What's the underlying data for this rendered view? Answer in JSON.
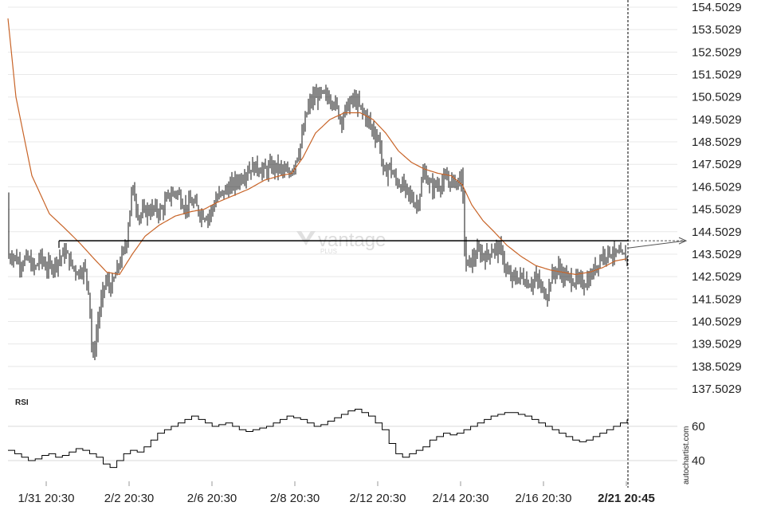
{
  "chart_data": [
    {
      "type": "candlestick",
      "price_axis": {
        "ticks": [
          "154.5029",
          "153.5029",
          "152.5029",
          "151.5029",
          "150.5029",
          "149.5029",
          "148.5029",
          "147.5029",
          "146.5029",
          "145.5029",
          "144.5029",
          "143.5029",
          "142.5029",
          "141.5029",
          "140.5029",
          "139.5029",
          "138.5029",
          "137.5029"
        ],
        "ylim": [
          137.0,
          154.75
        ]
      },
      "time_axis": {
        "ticks": [
          "1/31 20:30",
          "2/2 20:30",
          "2/6 20:30",
          "2/8 20:30",
          "2/12 20:30",
          "2/14 20:30",
          "2/16 20:30",
          "2/21 20:45"
        ],
        "highlight": "2/21 20:45"
      },
      "key_level": {
        "value": 144.1,
        "extends_right": true
      },
      "ohlc_anchors": [
        [
          0,
          146.0
        ],
        [
          6,
          143.2
        ],
        [
          16,
          143.5
        ],
        [
          24,
          143.1
        ],
        [
          34,
          143.3
        ],
        [
          44,
          142.8
        ],
        [
          50,
          143.4
        ],
        [
          58,
          142.9
        ],
        [
          66,
          143.0
        ],
        [
          74,
          143.3
        ],
        [
          82,
          143.6
        ],
        [
          90,
          143.0
        ],
        [
          98,
          142.7
        ],
        [
          106,
          142.9
        ],
        [
          112,
          141.8
        ],
        [
          116,
          138.6
        ],
        [
          124,
          140.8
        ],
        [
          132,
          142.3
        ],
        [
          140,
          142.0
        ],
        [
          148,
          142.9
        ],
        [
          158,
          143.9
        ],
        [
          166,
          146.5
        ],
        [
          174,
          145.2
        ],
        [
          182,
          145.4
        ],
        [
          192,
          145.5
        ],
        [
          202,
          145.4
        ],
        [
          212,
          146.1
        ],
        [
          222,
          146.3
        ],
        [
          232,
          145.6
        ],
        [
          242,
          145.8
        ],
        [
          252,
          145.3
        ],
        [
          262,
          145.2
        ],
        [
          272,
          146.0
        ],
        [
          282,
          146.3
        ],
        [
          292,
          146.6
        ],
        [
          302,
          146.9
        ],
        [
          312,
          147.3
        ],
        [
          322,
          147.4
        ],
        [
          332,
          147.2
        ],
        [
          342,
          147.4
        ],
        [
          352,
          147.3
        ],
        [
          362,
          147.0
        ],
        [
          370,
          147.6
        ],
        [
          378,
          148.5
        ],
        [
          386,
          150.0
        ],
        [
          394,
          150.5
        ],
        [
          402,
          150.6
        ],
        [
          410,
          150.5
        ],
        [
          418,
          150.4
        ],
        [
          428,
          149.5
        ],
        [
          436,
          150.1
        ],
        [
          444,
          150.4
        ],
        [
          452,
          150.0
        ],
        [
          460,
          149.6
        ],
        [
          468,
          149.0
        ],
        [
          476,
          148.6
        ],
        [
          482,
          146.9
        ],
        [
          488,
          147.5
        ],
        [
          496,
          146.8
        ],
        [
          506,
          146.5
        ],
        [
          516,
          146.0
        ],
        [
          524,
          145.7
        ],
        [
          532,
          147.2
        ],
        [
          540,
          146.5
        ],
        [
          550,
          146.6
        ],
        [
          560,
          146.8
        ],
        [
          570,
          146.7
        ],
        [
          580,
          146.9
        ],
        [
          584,
          143.0
        ],
        [
          592,
          143.2
        ],
        [
          600,
          143.6
        ],
        [
          610,
          143.4
        ],
        [
          620,
          143.8
        ],
        [
          630,
          143.6
        ],
        [
          636,
          142.6
        ],
        [
          644,
          142.4
        ],
        [
          654,
          142.5
        ],
        [
          664,
          142.2
        ],
        [
          674,
          142.4
        ],
        [
          680,
          141.9
        ],
        [
          686,
          141.7
        ],
        [
          692,
          142.5
        ],
        [
          700,
          142.9
        ],
        [
          708,
          142.5
        ],
        [
          716,
          142.4
        ],
        [
          724,
          142.3
        ],
        [
          732,
          142.2
        ],
        [
          740,
          142.4
        ],
        [
          748,
          143.0
        ],
        [
          756,
          143.5
        ],
        [
          764,
          143.6
        ],
        [
          772,
          143.5
        ],
        [
          780,
          143.4
        ],
        [
          787,
          143.3
        ]
      ],
      "moving_average": {
        "color": "#c86428",
        "anchors": [
          [
            10,
            154.0
          ],
          [
            20,
            150.5
          ],
          [
            40,
            147.0
          ],
          [
            62,
            145.3
          ],
          [
            80,
            144.7
          ],
          [
            100,
            144.0
          ],
          [
            118,
            143.3
          ],
          [
            134,
            142.7
          ],
          [
            150,
            142.6
          ],
          [
            166,
            143.5
          ],
          [
            182,
            144.3
          ],
          [
            200,
            144.8
          ],
          [
            220,
            145.2
          ],
          [
            240,
            145.4
          ],
          [
            256,
            145.5
          ],
          [
            272,
            145.8
          ],
          [
            292,
            146.1
          ],
          [
            312,
            146.4
          ],
          [
            332,
            146.8
          ],
          [
            352,
            147.0
          ],
          [
            366,
            147.1
          ],
          [
            380,
            147.8
          ],
          [
            396,
            148.9
          ],
          [
            414,
            149.5
          ],
          [
            432,
            149.8
          ],
          [
            452,
            149.8
          ],
          [
            468,
            149.5
          ],
          [
            484,
            148.9
          ],
          [
            500,
            148.1
          ],
          [
            516,
            147.6
          ],
          [
            532,
            147.3
          ],
          [
            550,
            147.1
          ],
          [
            566,
            147.0
          ],
          [
            580,
            146.6
          ],
          [
            592,
            145.7
          ],
          [
            606,
            145.0
          ],
          [
            620,
            144.5
          ],
          [
            636,
            143.9
          ],
          [
            654,
            143.4
          ],
          [
            672,
            143.0
          ],
          [
            690,
            142.8
          ],
          [
            706,
            142.7
          ],
          [
            722,
            142.6
          ],
          [
            740,
            142.7
          ],
          [
            756,
            142.9
          ],
          [
            772,
            143.2
          ],
          [
            787,
            143.3
          ]
        ]
      }
    },
    {
      "type": "line",
      "title": "RSI",
      "y_ticks": [
        60,
        40
      ],
      "ylim": [
        30,
        75
      ],
      "values": [
        46,
        44,
        42,
        40,
        41,
        43,
        44,
        42,
        43,
        45,
        47,
        46,
        44,
        42,
        38,
        36,
        40,
        44,
        46,
        45,
        48,
        52,
        56,
        58,
        60,
        62,
        64,
        66,
        64,
        62,
        60,
        61,
        62,
        60,
        58,
        57,
        58,
        59,
        60,
        62,
        64,
        66,
        65,
        64,
        62,
        60,
        61,
        63,
        65,
        67,
        69,
        70,
        68,
        66,
        62,
        58,
        50,
        44,
        42,
        44,
        46,
        48,
        52,
        54,
        56,
        55,
        56,
        58,
        60,
        62,
        64,
        66,
        67,
        68,
        68,
        67,
        66,
        64,
        62,
        60,
        58,
        56,
        54,
        52,
        51,
        52,
        54,
        56,
        58,
        60,
        62,
        64
      ]
    }
  ],
  "rsi_title": "RSI",
  "watermark": {
    "main": "vantage",
    "sub": "PLUS"
  },
  "credit": "autochartist.com"
}
